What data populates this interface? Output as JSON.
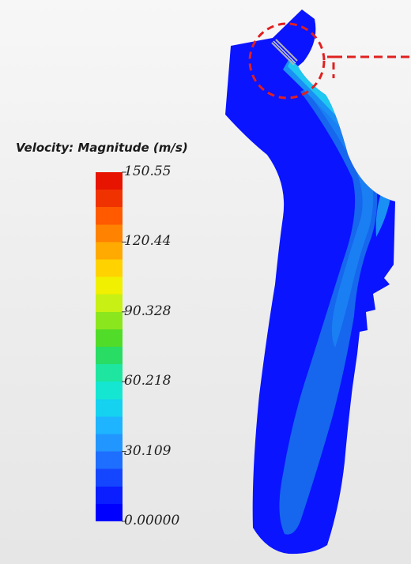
{
  "legend": {
    "title": "Velocity: Magnitude (m/s)",
    "ticks": [
      "150.55",
      "120.44",
      "90.328",
      "60.218",
      "30.109",
      "0.00000"
    ],
    "min": 0.0,
    "max": 150.55,
    "colormap": [
      "#0000ff",
      "#0a1eff",
      "#1546ff",
      "#1e6eff",
      "#2196ff",
      "#1eb4ff",
      "#14d2f0",
      "#14e6d2",
      "#1ee6a0",
      "#28dc64",
      "#50dc28",
      "#8ce61e",
      "#c8f014",
      "#f0f000",
      "#ffd200",
      "#ffaa00",
      "#ff8200",
      "#ff5a00",
      "#f03200",
      "#e61400"
    ]
  },
  "colors": {
    "domain": "#0a14ff",
    "jet_core": "#1ec8f0",
    "jet_mid": "#1a90f5",
    "plume": "#1666ee",
    "plume_inner": "#1a7ff2",
    "highlight_circle": "#e02020",
    "nozzle": "#b0b0b0"
  },
  "highlight": {
    "shape": "dashed circle",
    "target": "nozzle inlet"
  }
}
